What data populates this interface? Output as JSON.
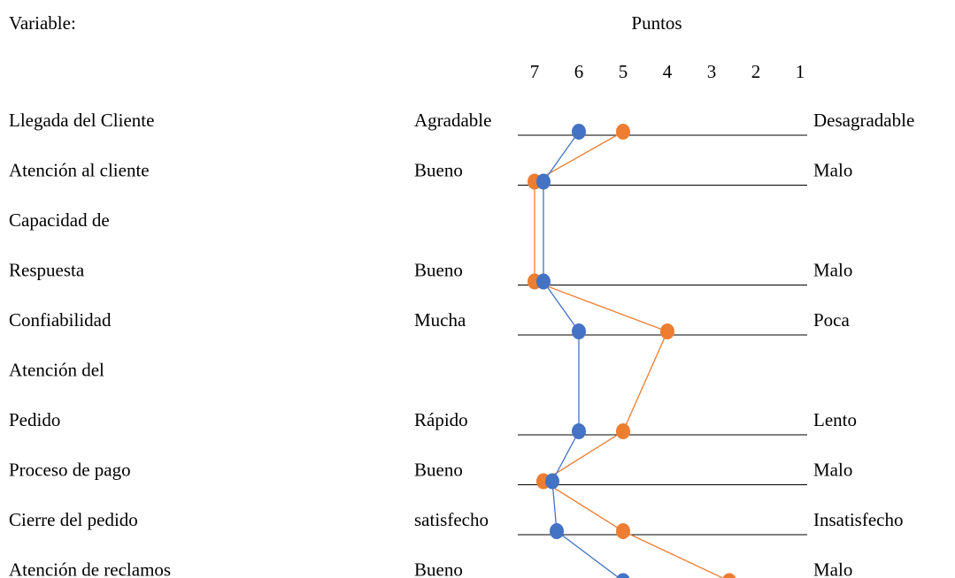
{
  "chart_data": {
    "type": "line",
    "variable_heading": "Variable:",
    "points_heading": "Puntos",
    "scale_ticks": [
      7,
      6,
      5,
      4,
      3,
      2,
      1
    ],
    "rows": [
      {
        "variable": "Llegada del Cliente",
        "left": "Agradable",
        "right": "Desagradable",
        "has_scale": true
      },
      {
        "variable": "Atención al cliente",
        "left": "Bueno",
        "right": "Malo",
        "has_scale": true
      },
      {
        "variable": "Capacidad de",
        "left": "",
        "right": "",
        "has_scale": false
      },
      {
        "variable": "Respuesta",
        "left": "Bueno",
        "right": "Malo",
        "has_scale": true
      },
      {
        "variable": "Confiabilidad",
        "left": "Mucha",
        "right": "Poca",
        "has_scale": true
      },
      {
        "variable": "Atención del",
        "left": "",
        "right": "",
        "has_scale": false
      },
      {
        "variable": "Pedido",
        "left": "Rápido",
        "right": "Lento",
        "has_scale": true
      },
      {
        "variable": "Proceso de pago",
        "left": "Bueno",
        "right": "Malo",
        "has_scale": true
      },
      {
        "variable": "Cierre del pedido",
        "left": "satisfecho",
        "right": "Insatisfecho",
        "has_scale": true
      },
      {
        "variable": "Atención de reclamos",
        "left": "Bueno",
        "right": "Malo",
        "has_scale": true
      }
    ],
    "series": [
      {
        "color": "#4472c4",
        "values": [
          6,
          6.8,
          6.8,
          6,
          6,
          6.6,
          6.5,
          5
        ]
      },
      {
        "color": "#ed7d31",
        "values": [
          5,
          7,
          7,
          4,
          5,
          6.8,
          5,
          2.6
        ]
      }
    ],
    "xlim": [
      7,
      1
    ],
    "grid": false,
    "legend": "none"
  }
}
